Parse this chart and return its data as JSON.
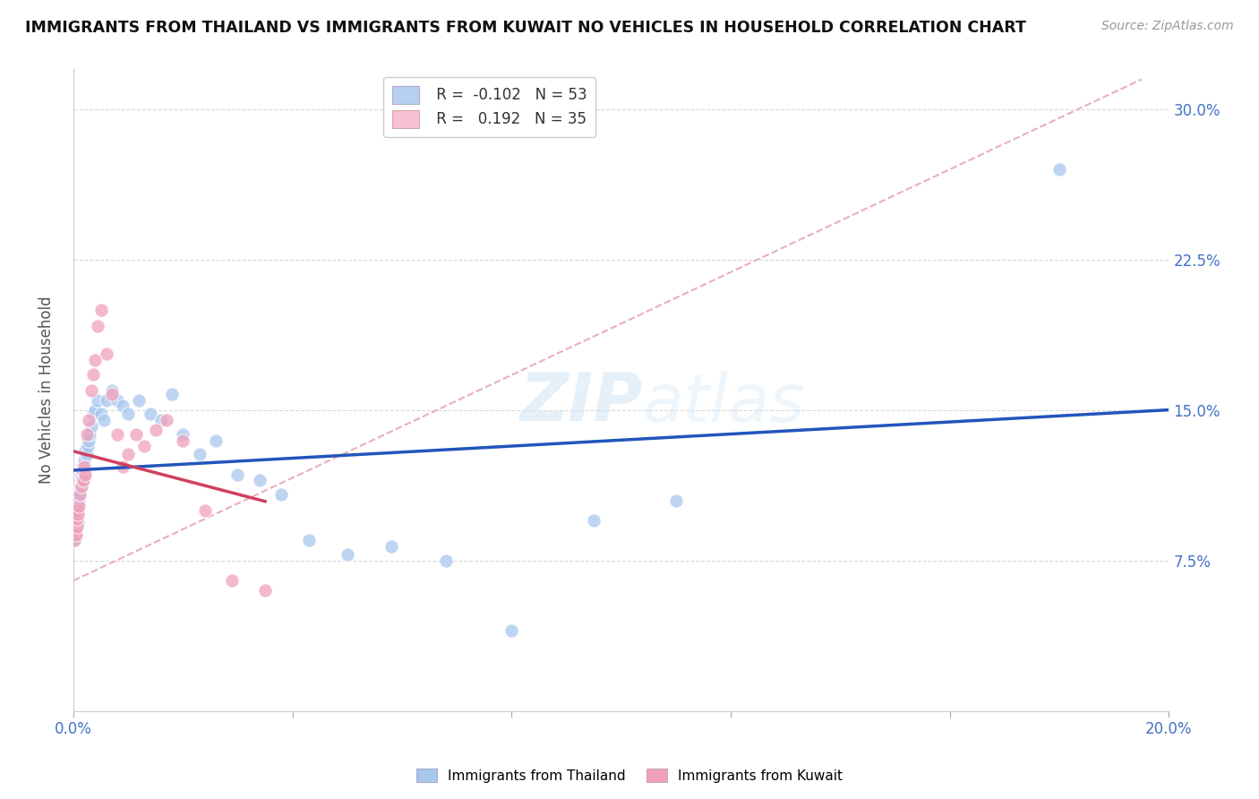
{
  "title": "IMMIGRANTS FROM THAILAND VS IMMIGRANTS FROM KUWAIT NO VEHICLES IN HOUSEHOLD CORRELATION CHART",
  "source": "Source: ZipAtlas.com",
  "ylabel_label": "No Vehicles in Household",
  "legend_entries": [
    {
      "label_r": "R = ",
      "r_val": "-0.102",
      "label_n": "  N = ",
      "n_val": "53",
      "color": "#b8d0f0"
    },
    {
      "label_r": "R =  ",
      "r_val": "0.192",
      "label_n": "  N = ",
      "n_val": "35",
      "color": "#f8c0d0"
    }
  ],
  "bottom_legend": [
    "Immigrants from Thailand",
    "Immigrants from Kuwait"
  ],
  "thailand_color": "#a8c8ee",
  "kuwait_color": "#f0a0bc",
  "thailand_trend_color": "#2255bb",
  "kuwait_trend_color": "#d04060",
  "ref_line_color": "#e8b0b8",
  "background_color": "#ffffff",
  "thailand_x": [
    0.0002,
    0.0003,
    0.0004,
    0.0005,
    0.0006,
    0.0007,
    0.0008,
    0.0009,
    0.001,
    0.0011,
    0.0012,
    0.0013,
    0.0014,
    0.0015,
    0.0016,
    0.0017,
    0.0018,
    0.0019,
    0.002,
    0.0022,
    0.0024,
    0.0026,
    0.0028,
    0.003,
    0.0033,
    0.0036,
    0.004,
    0.0044,
    0.005,
    0.0055,
    0.006,
    0.007,
    0.008,
    0.009,
    0.01,
    0.012,
    0.014,
    0.016,
    0.018,
    0.02,
    0.023,
    0.026,
    0.03,
    0.034,
    0.038,
    0.043,
    0.05,
    0.058,
    0.068,
    0.08,
    0.095,
    0.11,
    0.18
  ],
  "thailand_y": [
    0.085,
    0.095,
    0.088,
    0.092,
    0.096,
    0.1,
    0.094,
    0.098,
    0.105,
    0.11,
    0.108,
    0.112,
    0.115,
    0.118,
    0.12,
    0.122,
    0.115,
    0.118,
    0.125,
    0.13,
    0.128,
    0.132,
    0.135,
    0.138,
    0.142,
    0.148,
    0.15,
    0.155,
    0.148,
    0.145,
    0.155,
    0.16,
    0.155,
    0.152,
    0.148,
    0.155,
    0.148,
    0.145,
    0.158,
    0.138,
    0.128,
    0.135,
    0.118,
    0.115,
    0.108,
    0.085,
    0.078,
    0.082,
    0.075,
    0.04,
    0.095,
    0.105,
    0.27
  ],
  "kuwait_x": [
    0.0002,
    0.0003,
    0.0004,
    0.0005,
    0.0006,
    0.0007,
    0.0008,
    0.0009,
    0.001,
    0.0012,
    0.0014,
    0.0016,
    0.0018,
    0.002,
    0.0022,
    0.0025,
    0.0028,
    0.0032,
    0.0036,
    0.004,
    0.0045,
    0.005,
    0.006,
    0.007,
    0.008,
    0.009,
    0.01,
    0.0115,
    0.013,
    0.015,
    0.017,
    0.02,
    0.024,
    0.029,
    0.035
  ],
  "kuwait_y": [
    0.085,
    0.09,
    0.095,
    0.088,
    0.092,
    0.096,
    0.1,
    0.098,
    0.102,
    0.108,
    0.112,
    0.12,
    0.115,
    0.122,
    0.118,
    0.138,
    0.145,
    0.16,
    0.168,
    0.175,
    0.192,
    0.2,
    0.178,
    0.158,
    0.138,
    0.122,
    0.128,
    0.138,
    0.132,
    0.14,
    0.145,
    0.135,
    0.1,
    0.065,
    0.06
  ],
  "xmin": 0.0,
  "xmax": 0.2,
  "ymin": 0.0,
  "ymax": 0.32,
  "y_ticks": [
    0.075,
    0.15,
    0.225,
    0.3
  ],
  "y_tick_labels": [
    "7.5%",
    "15.0%",
    "22.5%",
    "30.0%"
  ],
  "x_ticks": [
    0.0,
    0.04,
    0.08,
    0.12,
    0.16,
    0.2
  ],
  "x_tick_labels_show": [
    "0.0%",
    "",
    "",
    "",
    "",
    "20.0%"
  ]
}
